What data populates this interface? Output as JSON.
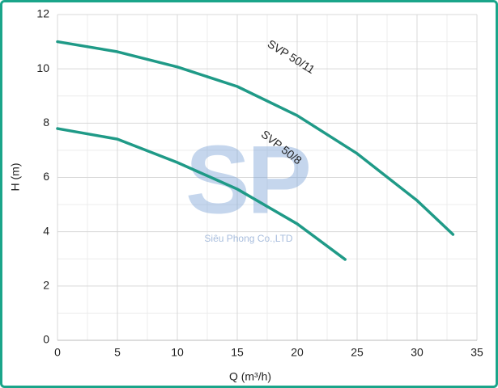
{
  "chart_data": {
    "type": "line",
    "x_label": "Q (m³/h)",
    "y_label": "H (m)",
    "xlim": [
      0,
      35
    ],
    "xticks": [
      0,
      5,
      10,
      15,
      20,
      25,
      30,
      35
    ],
    "ylim": [
      0,
      12
    ],
    "yticks": [
      0,
      2,
      4,
      6,
      8,
      10,
      12
    ],
    "x_minor_ticks": [
      2.5,
      7.5,
      12.5,
      17.5,
      22.5,
      27.5,
      32.5
    ],
    "y_minor_ticks": [
      1,
      3,
      5,
      7,
      9,
      11
    ],
    "grid": true,
    "series": [
      {
        "name": "SVP 50/11",
        "color": "#1f9a87",
        "x": [
          0,
          5,
          10,
          15,
          20,
          25,
          30,
          33
        ],
        "values": [
          11,
          10.63,
          10.07,
          9.35,
          8.28,
          6.88,
          5.15,
          3.9
        ]
      },
      {
        "name": "SVP 50/8",
        "color": "#1f9a87",
        "x": [
          0,
          5,
          10,
          15,
          20,
          24
        ],
        "values": [
          7.8,
          7.41,
          6.55,
          5.57,
          4.29,
          2.98
        ]
      }
    ],
    "watermark": {
      "logo": "SP",
      "company": "Siêu Phong Co.,LTD"
    }
  }
}
